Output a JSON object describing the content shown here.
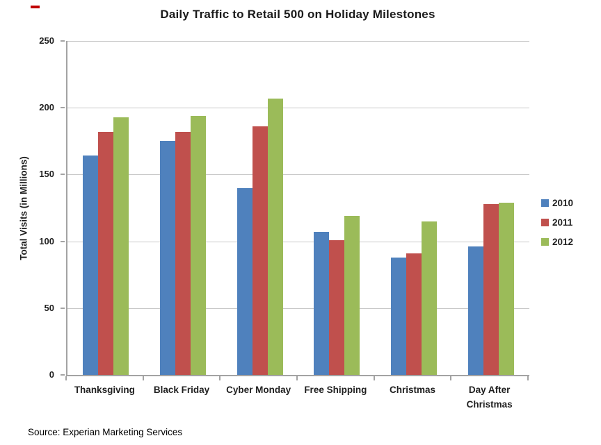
{
  "source": "Source: Experian Marketing Services",
  "annotation": {
    "dash_color": "#c00000"
  },
  "colors": {
    "grid": "#c7c7c7",
    "axis": "#a3a3a3",
    "text": "#1f1f1f",
    "background": "#ffffff"
  },
  "chart_data": {
    "type": "bar",
    "title": "Daily Traffic to Retail 500 on Holiday Milestones",
    "xlabel": "",
    "ylabel": "Total Visits (in Millions)",
    "ylim": [
      0,
      250
    ],
    "yticks": [
      0,
      50,
      100,
      150,
      200,
      250
    ],
    "grid": true,
    "legend_position": "right",
    "categories": [
      "Thanksgiving",
      "Black Friday",
      "Cyber Monday",
      "Free Shipping",
      "Christmas",
      "Day After Christmas"
    ],
    "series": [
      {
        "name": "2010",
        "color": "#4f81bd",
        "values": [
          164,
          175,
          140,
          107,
          88,
          96
        ]
      },
      {
        "name": "2011",
        "color": "#c0504d",
        "values": [
          182,
          182,
          186,
          101,
          91,
          128
        ]
      },
      {
        "name": "2012",
        "color": "#9bbb59",
        "values": [
          193,
          194,
          207,
          119,
          115,
          129
        ]
      }
    ]
  }
}
